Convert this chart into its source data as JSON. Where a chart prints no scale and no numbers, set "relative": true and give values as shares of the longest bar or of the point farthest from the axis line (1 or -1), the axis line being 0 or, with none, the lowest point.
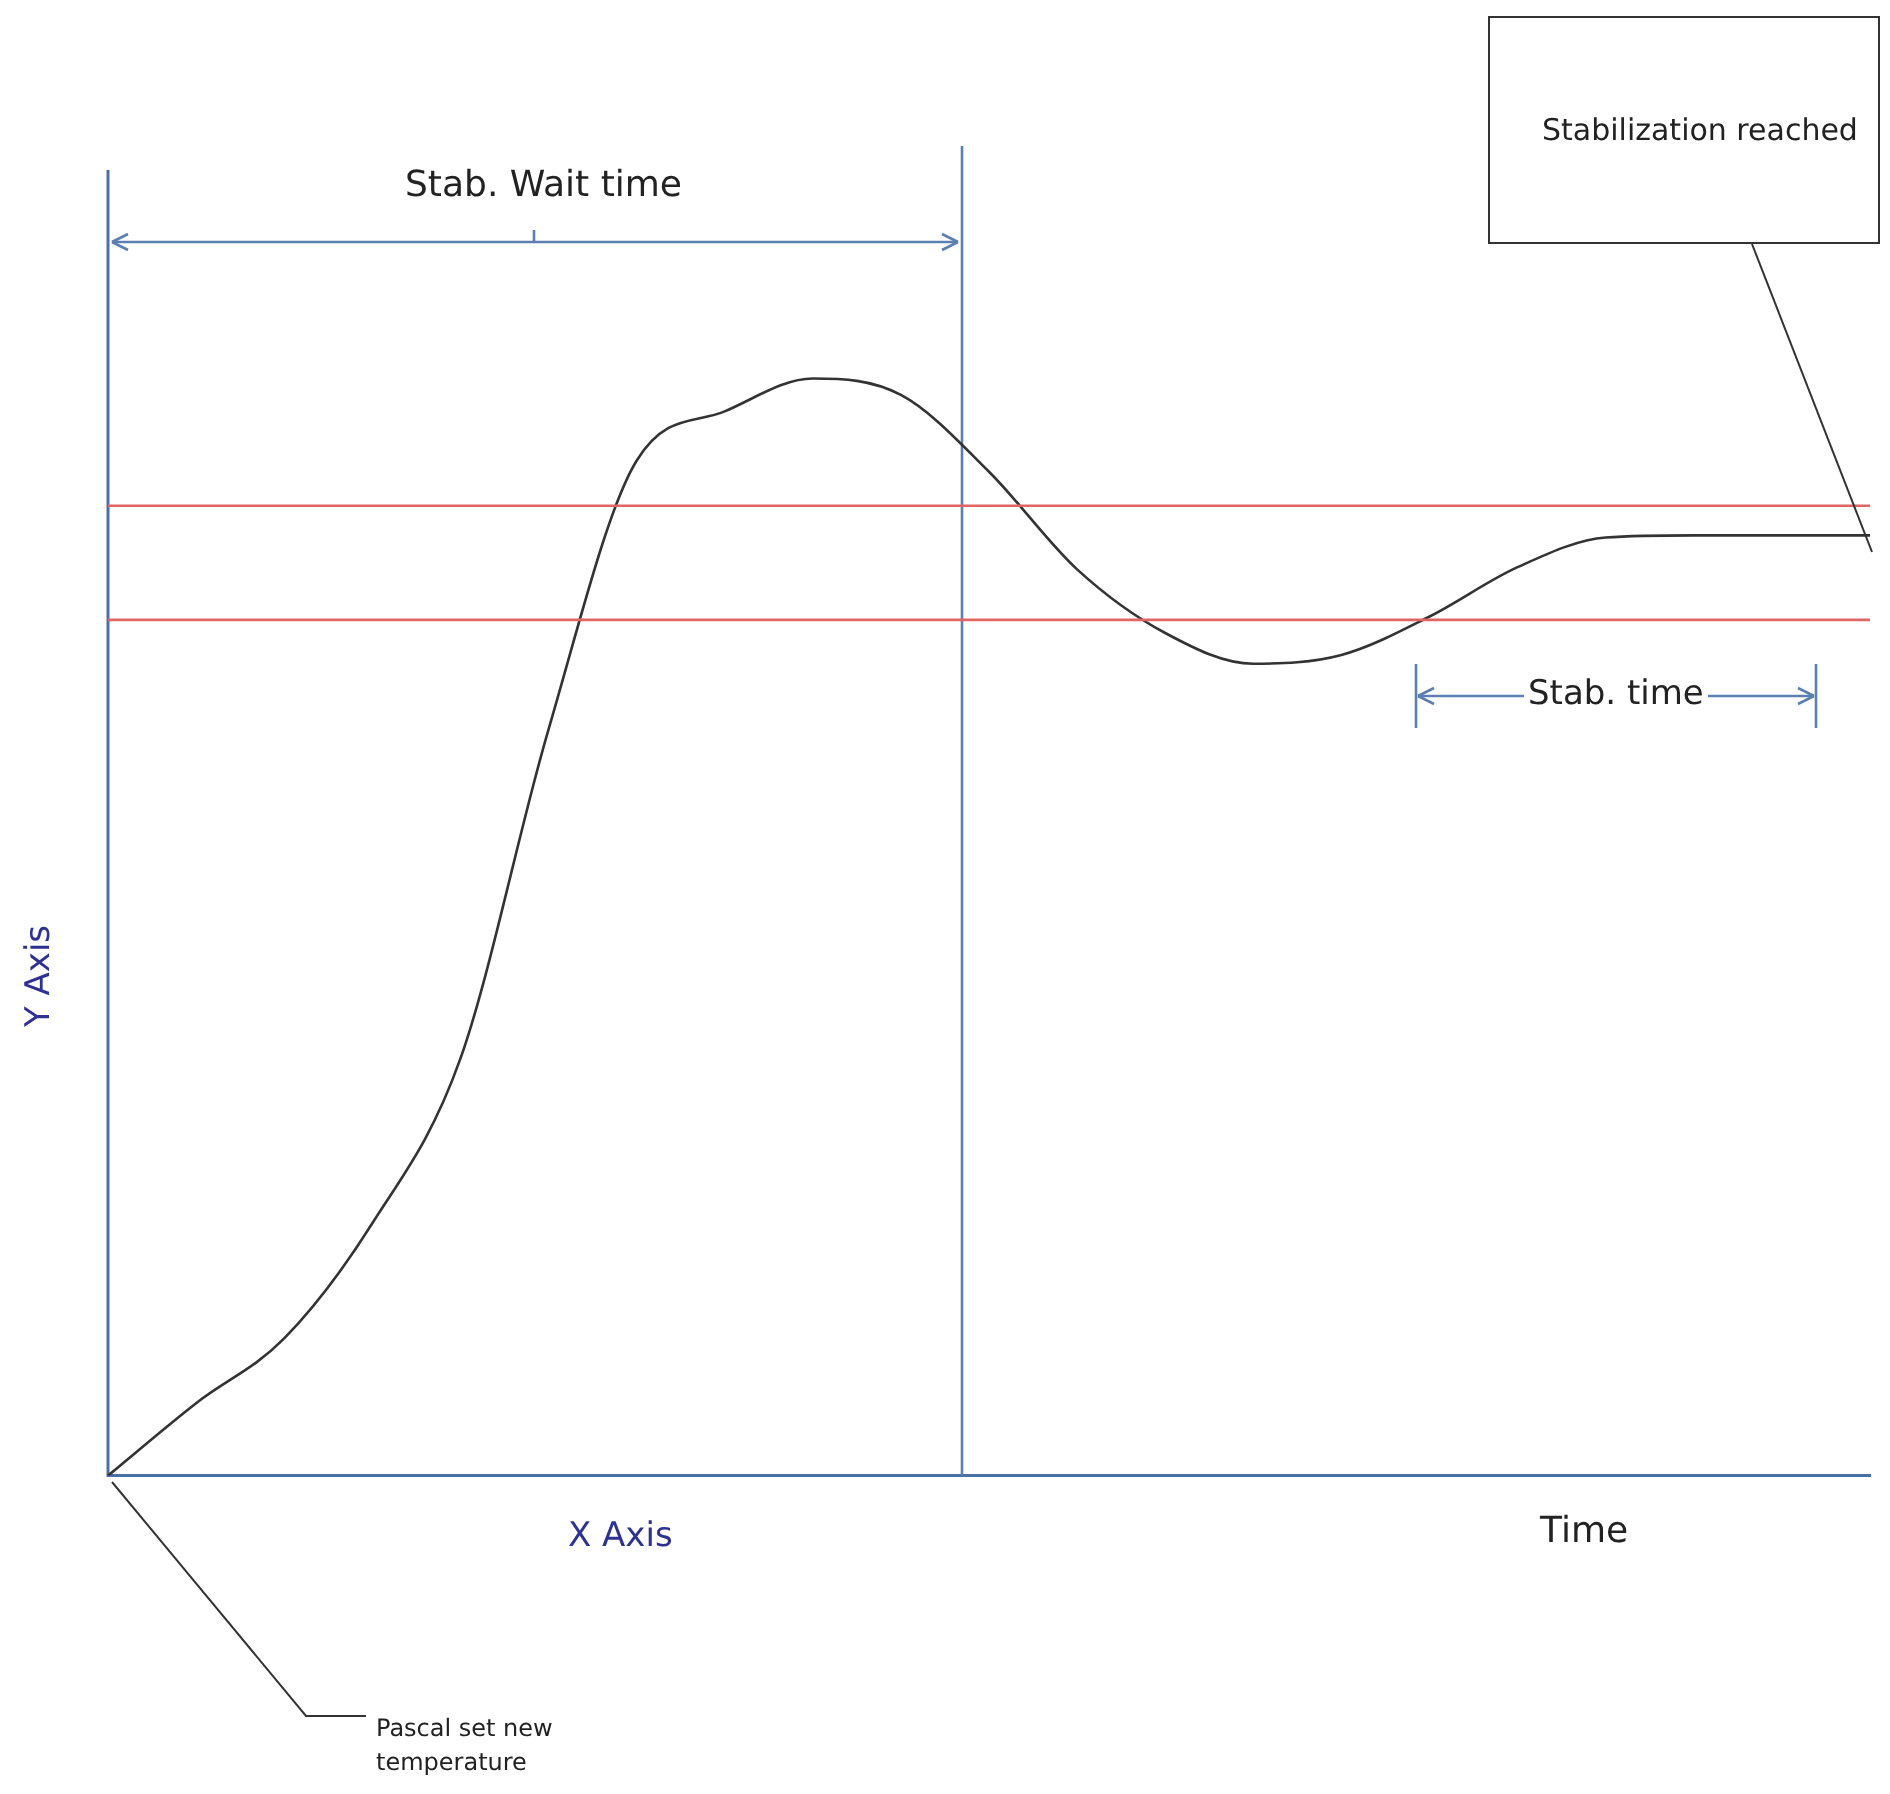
{
  "chart_data": {
    "type": "line",
    "relative": true,
    "xlabel": "X Axis",
    "ylabel": "Y Axis",
    "categories": [
      null,
      null,
      null,
      null,
      null,
      null,
      null,
      null,
      null,
      null,
      null,
      null,
      null,
      null,
      null,
      null,
      null,
      null,
      null,
      null,
      null
    ],
    "series": [
      {
        "color": "#333333",
        "values": [
          0,
          0.066,
          0.125,
          0.23,
          0.38,
          0.68,
          0.925,
          0.97,
          1,
          0.985,
          0.915,
          0.826,
          0.768,
          0.74,
          0.748,
          0.783,
          0.828,
          0.855,
          0.857,
          0.857,
          0.857
        ]
      }
    ],
    "ref_lines": [
      {
        "axis": "y",
        "value": 0.884,
        "color": "#e06666"
      },
      {
        "axis": "y",
        "value": 0.78,
        "color": "#e06666"
      }
    ],
    "annotations": [
      "Stab. Wait time",
      "Stab. time",
      "Stabilization reached",
      "Pascal set new temperature",
      "Time"
    ],
    "grid": false,
    "legend": false,
    "marker": "none",
    "line_style": "solid"
  }
}
